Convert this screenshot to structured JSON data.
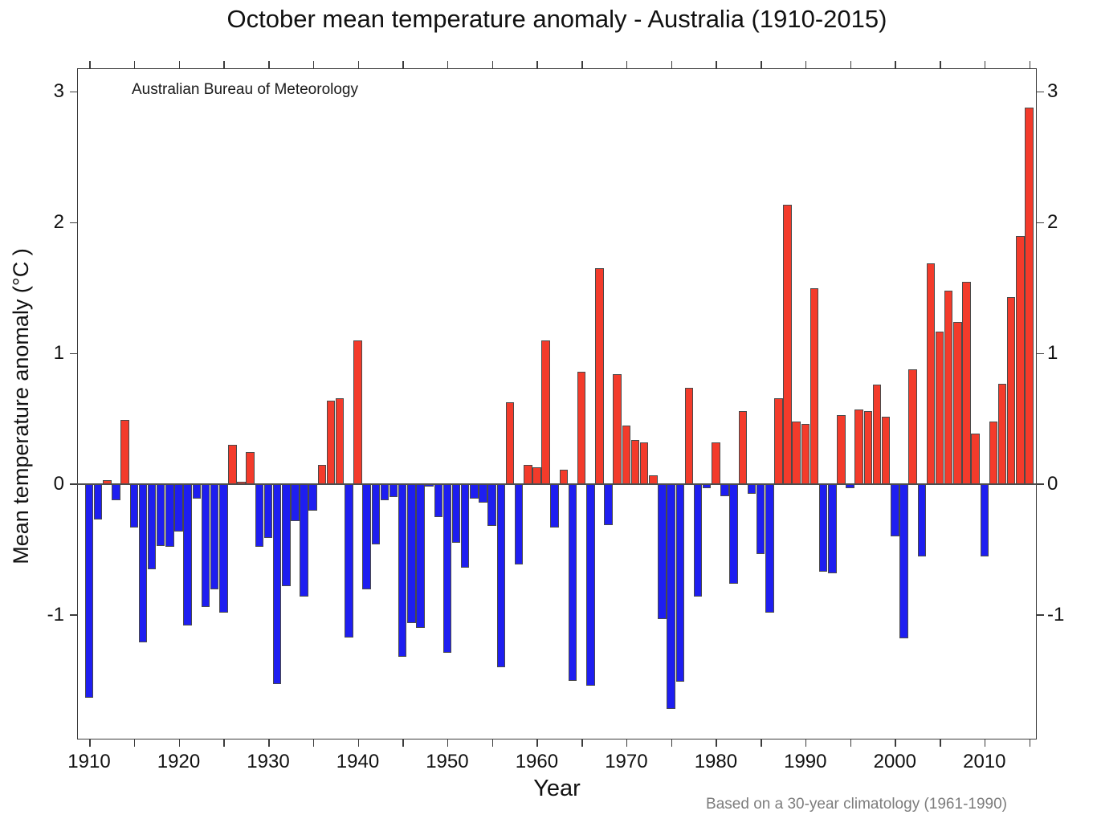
{
  "title": "October mean temperature anomaly - Australia (1910-2015)",
  "annotation": "Australian Bureau of Meteorology",
  "footnote": "Based on a 30-year climatology (1961-1990)",
  "colors": {
    "positive_bar": "#f33b2b",
    "negative_bar": "#1e1ef0",
    "bar_border": "#4a4a4a",
    "axis": "#3c3c3c",
    "footnote_text": "#7d7d7d"
  },
  "chart_data": {
    "type": "bar",
    "title": "October mean temperature anomaly - Australia (1910-2015)",
    "xlabel": "Year",
    "ylabel": "Mean temperature anomaly (°C )",
    "annotation": "Australian Bureau of Meteorology",
    "footnote": "Based on a 30-year climatology (1961-1990)",
    "legend": "none",
    "grid": false,
    "bar_color_rule": "red if value >= 0 else blue",
    "xlim": [
      1908.65,
      2015.85
    ],
    "ylim": [
      -1.95,
      3.18
    ],
    "yticks": [
      3,
      2,
      1,
      0,
      -1
    ],
    "xticks_labeled": [
      1910,
      1920,
      1930,
      1940,
      1950,
      1960,
      1970,
      1980,
      1990,
      2000,
      2010
    ],
    "xticks_minor_step": 5,
    "years": [
      1910,
      1911,
      1912,
      1913,
      1914,
      1915,
      1916,
      1917,
      1918,
      1919,
      1920,
      1921,
      1922,
      1923,
      1924,
      1925,
      1926,
      1927,
      1928,
      1929,
      1930,
      1931,
      1932,
      1933,
      1934,
      1935,
      1936,
      1937,
      1938,
      1939,
      1940,
      1941,
      1942,
      1943,
      1944,
      1945,
      1946,
      1947,
      1948,
      1949,
      1950,
      1951,
      1952,
      1953,
      1954,
      1955,
      1956,
      1957,
      1958,
      1959,
      1960,
      1961,
      1962,
      1963,
      1964,
      1965,
      1966,
      1967,
      1968,
      1969,
      1970,
      1971,
      1972,
      1973,
      1974,
      1975,
      1976,
      1977,
      1978,
      1979,
      1980,
      1981,
      1982,
      1983,
      1984,
      1985,
      1986,
      1987,
      1988,
      1989,
      1990,
      1991,
      1992,
      1993,
      1994,
      1995,
      1996,
      1997,
      1998,
      1999,
      2000,
      2001,
      2002,
      2003,
      2004,
      2005,
      2006,
      2007,
      2008,
      2009,
      2010,
      2011,
      2012,
      2013,
      2014,
      2015
    ],
    "values": [
      -1.63,
      -0.27,
      0.03,
      -0.12,
      0.49,
      -0.33,
      -1.21,
      -0.65,
      -0.47,
      -0.48,
      -0.36,
      -1.08,
      -0.11,
      -0.94,
      -0.8,
      -0.98,
      0.3,
      0.02,
      0.25,
      -0.48,
      -0.41,
      -1.53,
      -0.78,
      -0.28,
      -0.86,
      -0.2,
      0.15,
      0.64,
      0.66,
      -1.17,
      1.1,
      -0.8,
      -0.46,
      -0.12,
      -0.1,
      -1.32,
      -1.06,
      -1.1,
      -0.02,
      -0.25,
      -1.29,
      -0.45,
      -0.64,
      -0.11,
      -0.14,
      -0.32,
      -1.4,
      0.63,
      -0.61,
      0.15,
      0.13,
      1.1,
      -0.33,
      0.11,
      -1.5,
      0.86,
      -1.54,
      1.65,
      -0.31,
      0.84,
      0.45,
      0.34,
      0.32,
      0.07,
      -1.03,
      -1.72,
      -1.51,
      0.74,
      -0.86,
      -0.03,
      0.32,
      -0.09,
      -0.76,
      0.56,
      -0.07,
      -0.53,
      -0.98,
      0.66,
      2.14,
      0.48,
      0.46,
      1.5,
      -0.67,
      -0.68,
      0.53,
      -0.03,
      0.57,
      0.56,
      0.76,
      0.52,
      -0.4,
      -1.18,
      0.88,
      -0.55,
      1.69,
      1.17,
      1.48,
      1.24,
      1.55,
      0.39,
      -0.55,
      0.48,
      0.77,
      1.43,
      1.9,
      2.88
    ]
  }
}
